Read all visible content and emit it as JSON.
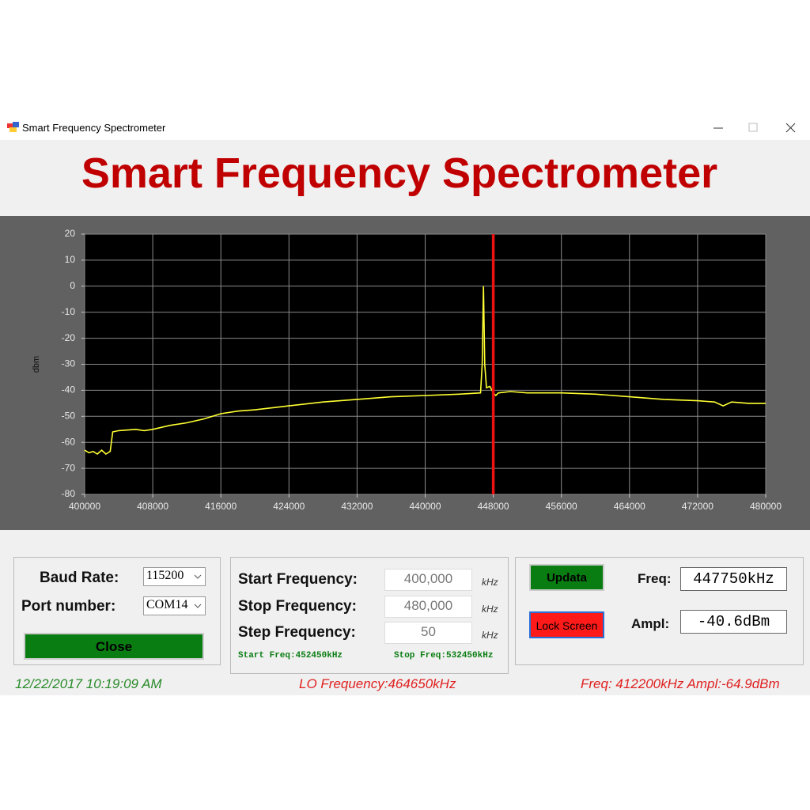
{
  "window": {
    "title": "Smart Frequency Spectrometer"
  },
  "header": {
    "title": "Smart Frequency Spectrometer"
  },
  "chart_data": {
    "type": "line",
    "ylabel": "dbm",
    "xlim": [
      400000,
      480000
    ],
    "xticks": [
      400000,
      408000,
      416000,
      424000,
      432000,
      440000,
      448000,
      456000,
      464000,
      472000,
      480000
    ],
    "ylim": [
      -80,
      20
    ],
    "yticks": [
      -80,
      -70,
      -60,
      -50,
      -40,
      -30,
      -20,
      -10,
      0,
      10,
      20
    ],
    "grid": true,
    "x": [
      400000,
      400500,
      401000,
      401500,
      402000,
      402500,
      403000,
      403300,
      404000,
      406000,
      407000,
      408000,
      410000,
      412000,
      414000,
      416000,
      418000,
      420000,
      424000,
      428000,
      432000,
      436000,
      440000,
      444000,
      446500,
      446700,
      446850,
      447000,
      447200,
      447600,
      448000,
      448300,
      448600,
      450000,
      452000,
      456000,
      460000,
      464000,
      468000,
      472000,
      474000,
      475000,
      476000,
      478000,
      480000
    ],
    "series": [
      {
        "color": "#ffff33",
        "values": [
          -63,
          -64,
          -63.5,
          -64.5,
          -63,
          -64.5,
          -63.5,
          -56,
          -55.5,
          -55,
          -55.5,
          -55,
          -53.5,
          -52.5,
          -51,
          -49,
          -48,
          -47.5,
          -46,
          -44.5,
          -43.5,
          -42.5,
          -42,
          -41.5,
          -41,
          -30,
          0,
          -30,
          -39,
          -38.5,
          -41,
          -42,
          -41,
          -40.5,
          -41,
          -41,
          -41.5,
          -42.5,
          -43.5,
          -44,
          -44.5,
          -46,
          -44.5,
          -45,
          -45
        ]
      }
    ],
    "marker": {
      "x": 448000,
      "color": "#ee1111"
    }
  },
  "serial": {
    "baud_label": "Baud Rate:",
    "baud_value": "115200",
    "port_label": "Port number:",
    "port_value": "COM14",
    "close_button": "Close"
  },
  "frequency": {
    "rows": [
      {
        "label": "Start Frequency:",
        "value": "400,000",
        "unit": "kHz"
      },
      {
        "label": "Stop Frequency:",
        "value": "480,000",
        "unit": "kHz"
      },
      {
        "label": "Step Frequency:",
        "value": "50",
        "unit": "kHz"
      }
    ],
    "start_note": "Start Freq:452450kHz",
    "stop_note": "Stop Freq:532450kHz"
  },
  "readout": {
    "update_button": "Updata",
    "lock_button": "Lock Screen",
    "freq_label": "Freq:",
    "freq_value": "447750kHz",
    "ampl_label": "Ampl:",
    "ampl_value": "-40.6dBm"
  },
  "status": {
    "datetime": "12/22/2017 10:19:09 AM",
    "lo": "LO Frequency:464650kHz",
    "cursor": "Freq: 412200kHz Ampl:-64.9dBm"
  }
}
